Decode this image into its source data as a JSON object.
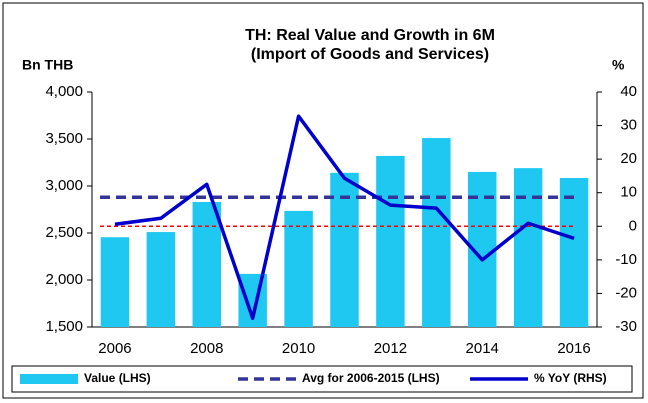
{
  "chart_data": {
    "type": "bar",
    "title": "TH: Real Value and Growth in 6M",
    "subtitle": "(Import of Goods and Services)",
    "ylabel": "Bn THB",
    "y2label": "%",
    "categories": [
      2006,
      null,
      2008,
      null,
      2010,
      null,
      2012,
      null,
      2014,
      null,
      2016
    ],
    "series": [
      {
        "name": "Value (LHS)",
        "type": "bar",
        "color": "#1ec8f0",
        "values": [
          2455,
          2510,
          2830,
          2065,
          2735,
          3140,
          3320,
          3510,
          3150,
          3190,
          3085
        ]
      },
      {
        "name": "Avg for 2006-2015 (LHS)",
        "type": "hline",
        "color": "#333399",
        "value": 2880
      },
      {
        "name": "% YoY (RHS)",
        "type": "line",
        "axis": "y2",
        "color": "#0000cc",
        "values": [
          0.6,
          2.4,
          12.5,
          -27.4,
          32.8,
          14.3,
          6.3,
          5.4,
          -10,
          0.9,
          -3.6
        ]
      }
    ],
    "reference_line": {
      "axis": "y2",
      "value": 0,
      "color": "#ff0000"
    },
    "ylim": [
      1500,
      4000
    ],
    "yticks": [
      {
        "value": 1500,
        "label": "1,500"
      },
      {
        "value": 2000,
        "label": "2,000"
      },
      {
        "value": 2500,
        "label": "2,500"
      },
      {
        "value": 3000,
        "label": "3,000"
      },
      {
        "value": 3500,
        "label": "3,500"
      },
      {
        "value": 4000,
        "label": "4,000"
      }
    ],
    "y2lim": [
      -30,
      40
    ],
    "y2ticks": [
      -30,
      -20,
      -10,
      0,
      10,
      20,
      30,
      40
    ],
    "legend": "bottom"
  }
}
